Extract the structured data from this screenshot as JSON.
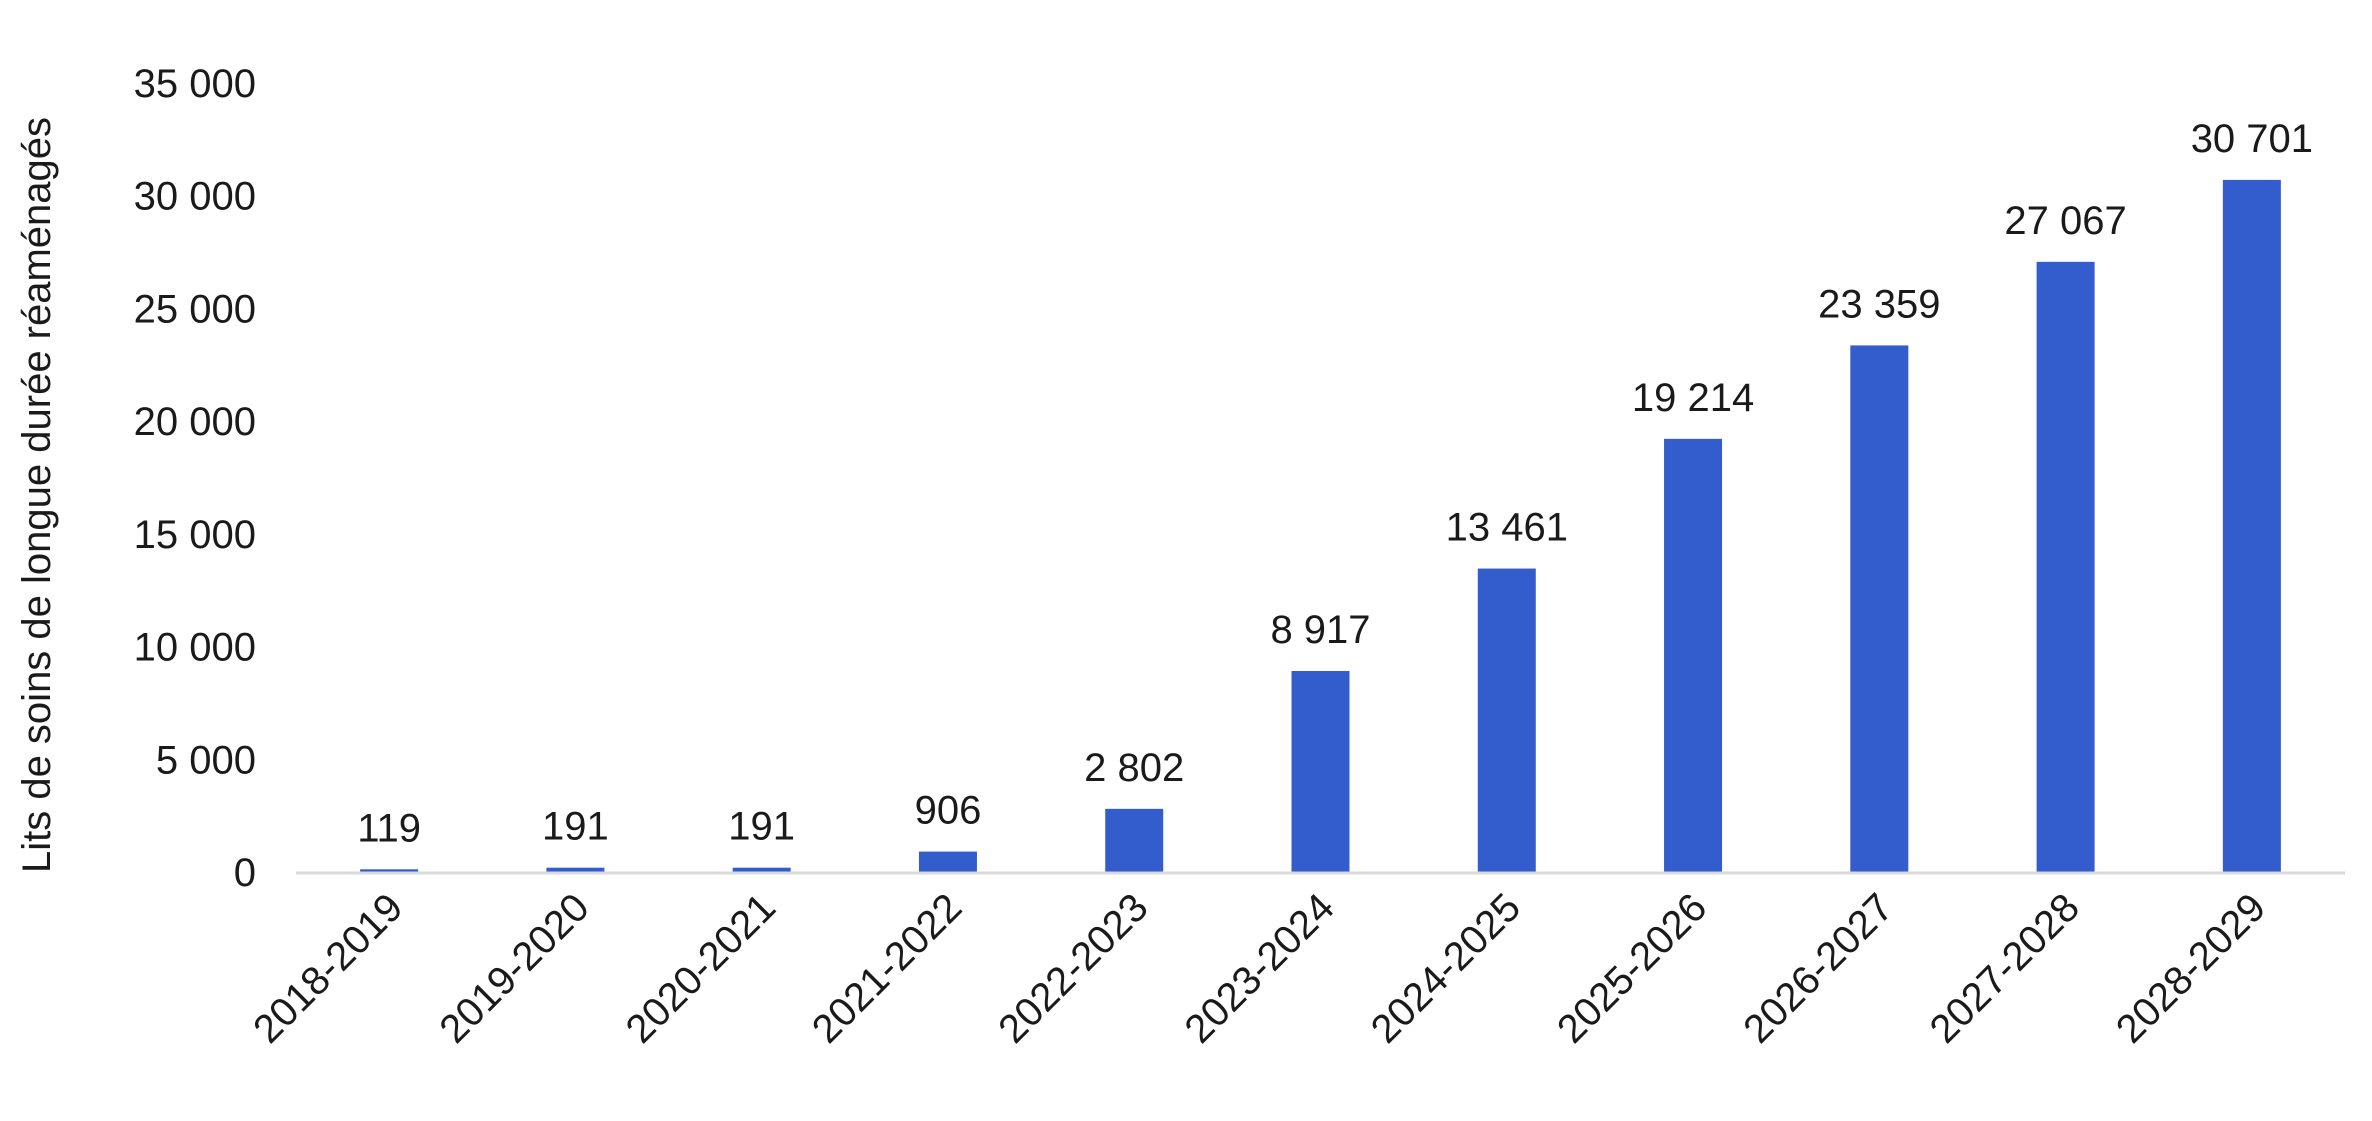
{
  "chart_data": {
    "type": "bar",
    "ylabel": "Lits de soins de longue durée réaménagés",
    "xlabel": "",
    "title": "",
    "categories": [
      "2018-2019",
      "2019-2020",
      "2020-2021",
      "2021-2022",
      "2022-2023",
      "2023-2024",
      "2024-2025",
      "2025-2026",
      "2026-2027",
      "2027-2028",
      "2028-2029"
    ],
    "values": [
      119,
      191,
      191,
      906,
      2802,
      8917,
      13461,
      19214,
      23359,
      27067,
      30701
    ],
    "value_labels": [
      "119",
      "191",
      "191",
      "906",
      "2 802",
      "8 917",
      "13 461",
      "19 214",
      "23 359",
      "27 067",
      "30 701"
    ],
    "ylim": [
      0,
      35000
    ],
    "yticks": [
      0,
      5000,
      10000,
      15000,
      20000,
      25000,
      30000,
      35000
    ],
    "ytick_labels": [
      "0",
      "5 000",
      "10 000",
      "15 000",
      "20 000",
      "25 000",
      "30 000",
      "35 000"
    ],
    "grid": false,
    "legend": "none",
    "bar_color": "#335ccc",
    "axis_color": "#d9d9d9"
  }
}
